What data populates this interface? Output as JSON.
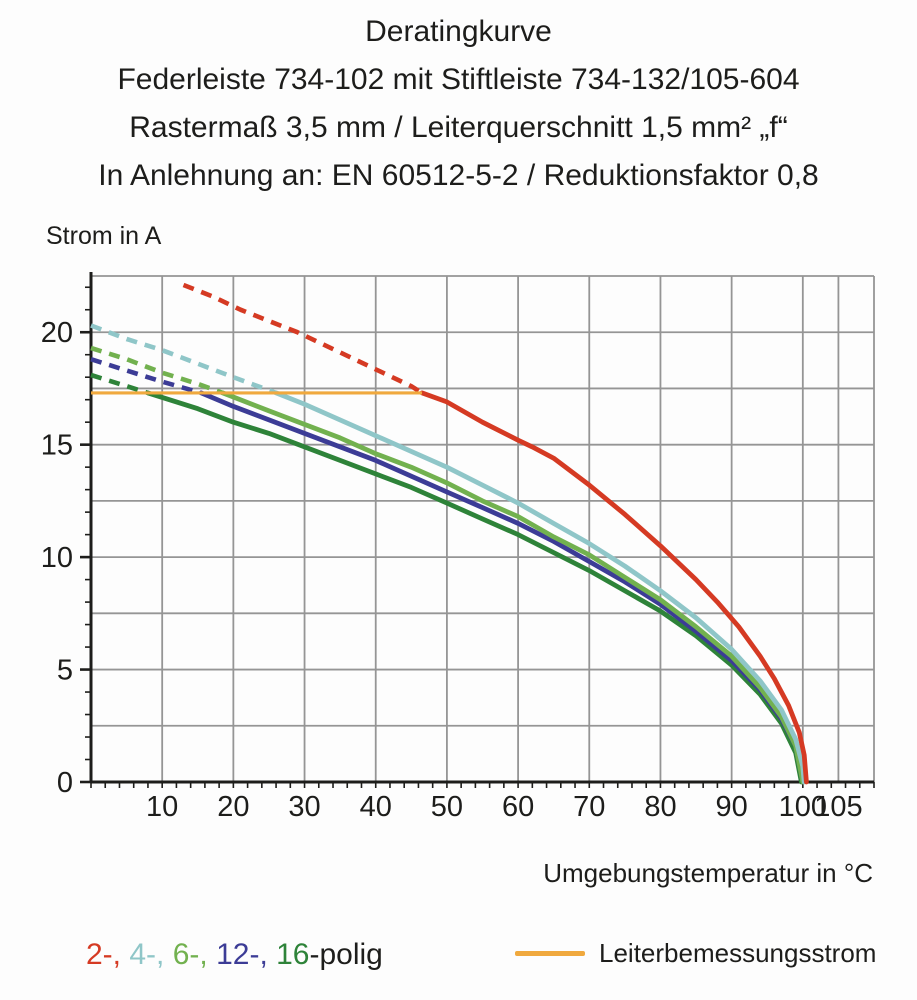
{
  "title_block": {
    "line1": "Deratingkurve",
    "line2": "Federleiste 734-102 mit Stiftleiste 734-132/105-604",
    "line3": "Rastermaß 3,5 mm / Leiterquerschnitt 1,5 mm² „f“",
    "line4": "In Anlehnung an: EN 60512-5-2 / Reduktionsfaktor 0,8"
  },
  "chart_data": {
    "type": "line",
    "title": "Deratingkurve",
    "xlabel": "Umgebungstemperatur in °C",
    "ylabel": "Strom in A",
    "xlim": [
      0,
      110
    ],
    "ylim": [
      0,
      22.5
    ],
    "grid": true,
    "grid_color": "#959595",
    "axis_color": "#1d1d1b",
    "x_tick_labels": [
      10,
      20,
      30,
      40,
      50,
      60,
      70,
      80,
      90,
      100,
      105
    ],
    "x_gridlines": [
      10,
      20,
      30,
      40,
      50,
      60,
      70,
      80,
      90,
      100,
      105
    ],
    "x_minor_tick_step": 2,
    "y_tick_labels": [
      0,
      5,
      10,
      15,
      20
    ],
    "y_gridlines": [
      2.5,
      5,
      7.5,
      10,
      12.5,
      15,
      17.5,
      20
    ],
    "y_minor_tick_step": 1,
    "rated_line": {
      "label": "Leiterbemessungsstrom",
      "value": 17.3,
      "x_start": 0,
      "x_end": 46.5,
      "color": "#f0a93e"
    },
    "series": [
      {
        "name": "16-polig",
        "color": "#2e8339",
        "dashed_points": [
          [
            0,
            18.1
          ],
          [
            4,
            17.7
          ],
          [
            8,
            17.3
          ]
        ],
        "solid_points": [
          [
            8,
            17.3
          ],
          [
            10,
            17.1
          ],
          [
            15,
            16.6
          ],
          [
            20,
            16.0
          ],
          [
            25,
            15.5
          ],
          [
            30,
            14.9
          ],
          [
            35,
            14.3
          ],
          [
            40,
            13.7
          ],
          [
            45,
            13.1
          ],
          [
            50,
            12.4
          ],
          [
            55,
            11.7
          ],
          [
            60,
            11.0
          ],
          [
            65,
            10.2
          ],
          [
            70,
            9.4
          ],
          [
            75,
            8.5
          ],
          [
            80,
            7.6
          ],
          [
            85,
            6.5
          ],
          [
            90,
            5.2
          ],
          [
            94,
            3.9
          ],
          [
            97,
            2.6
          ],
          [
            99,
            1.3
          ],
          [
            99.8,
            0
          ]
        ]
      },
      {
        "name": "12-polig",
        "color": "#3c3c96",
        "dashed_points": [
          [
            0,
            18.8
          ],
          [
            5,
            18.3
          ],
          [
            10,
            17.8
          ],
          [
            15.5,
            17.3
          ]
        ],
        "solid_points": [
          [
            15.5,
            17.3
          ],
          [
            20,
            16.7
          ],
          [
            25,
            16.1
          ],
          [
            30,
            15.5
          ],
          [
            35,
            14.9
          ],
          [
            40,
            14.3
          ],
          [
            45,
            13.6
          ],
          [
            50,
            12.9
          ],
          [
            55,
            12.2
          ],
          [
            60,
            11.5
          ],
          [
            65,
            10.7
          ],
          [
            70,
            9.8
          ],
          [
            75,
            8.9
          ],
          [
            80,
            7.9
          ],
          [
            85,
            6.7
          ],
          [
            90,
            5.4
          ],
          [
            94,
            4.1
          ],
          [
            97,
            2.8
          ],
          [
            99,
            1.6
          ],
          [
            100,
            0
          ]
        ]
      },
      {
        "name": "6-polig",
        "color": "#72b14f",
        "dashed_points": [
          [
            0,
            19.3
          ],
          [
            5,
            18.8
          ],
          [
            10,
            18.2
          ],
          [
            15,
            17.7
          ],
          [
            18.5,
            17.3
          ]
        ],
        "solid_points": [
          [
            18.5,
            17.3
          ],
          [
            25,
            16.5
          ],
          [
            30,
            15.9
          ],
          [
            35,
            15.3
          ],
          [
            40,
            14.6
          ],
          [
            45,
            14.0
          ],
          [
            50,
            13.3
          ],
          [
            55,
            12.5
          ],
          [
            60,
            11.8
          ],
          [
            65,
            10.9
          ],
          [
            70,
            10.1
          ],
          [
            75,
            9.1
          ],
          [
            80,
            8.1
          ],
          [
            85,
            6.9
          ],
          [
            90,
            5.6
          ],
          [
            94,
            4.2
          ],
          [
            97,
            2.9
          ],
          [
            99,
            1.6
          ],
          [
            100,
            0
          ]
        ]
      },
      {
        "name": "4-polig",
        "color": "#8fc6c8",
        "dashed_points": [
          [
            0,
            20.3
          ],
          [
            5,
            19.7
          ],
          [
            10,
            19.2
          ],
          [
            15,
            18.6
          ],
          [
            20,
            18.0
          ],
          [
            26,
            17.3
          ]
        ],
        "solid_points": [
          [
            26,
            17.3
          ],
          [
            30,
            16.8
          ],
          [
            35,
            16.1
          ],
          [
            40,
            15.4
          ],
          [
            45,
            14.7
          ],
          [
            50,
            14.0
          ],
          [
            55,
            13.2
          ],
          [
            60,
            12.4
          ],
          [
            65,
            11.5
          ],
          [
            70,
            10.6
          ],
          [
            75,
            9.6
          ],
          [
            80,
            8.5
          ],
          [
            85,
            7.3
          ],
          [
            90,
            5.9
          ],
          [
            94,
            4.5
          ],
          [
            97,
            3.2
          ],
          [
            99,
            1.9
          ],
          [
            100,
            0.7
          ],
          [
            100.2,
            0
          ]
        ]
      },
      {
        "name": "2-polig",
        "color": "#d53a23",
        "dashed_points": [
          [
            13,
            22.1
          ],
          [
            17,
            21.6
          ],
          [
            21,
            21.0
          ],
          [
            25,
            20.5
          ],
          [
            29,
            20.0
          ],
          [
            33,
            19.4
          ],
          [
            37,
            18.8
          ],
          [
            41,
            18.2
          ],
          [
            45,
            17.6
          ],
          [
            46.5,
            17.3
          ]
        ],
        "solid_points": [
          [
            46.5,
            17.3
          ],
          [
            50,
            16.9
          ],
          [
            55,
            16.0
          ],
          [
            60,
            15.2
          ],
          [
            62,
            14.9
          ],
          [
            65,
            14.4
          ],
          [
            70,
            13.2
          ],
          [
            75,
            11.9
          ],
          [
            80,
            10.5
          ],
          [
            85,
            9.0
          ],
          [
            88,
            8.0
          ],
          [
            91,
            6.9
          ],
          [
            94,
            5.6
          ],
          [
            96,
            4.6
          ],
          [
            98,
            3.4
          ],
          [
            99.5,
            2.2
          ],
          [
            100.2,
            1.2
          ],
          [
            100.5,
            0
          ]
        ]
      }
    ]
  },
  "legend_poles": {
    "items": [
      {
        "text": "2-,",
        "color": "#d53a23"
      },
      {
        "text": "4-,",
        "color": "#8fc6c8"
      },
      {
        "text": "6-,",
        "color": "#72b14f"
      },
      {
        "text": "12-,",
        "color": "#3c3c96"
      },
      {
        "text": "16",
        "color": "#2e8339"
      }
    ],
    "suffix": {
      "text": "-polig",
      "color": "#1d1d1b"
    }
  }
}
